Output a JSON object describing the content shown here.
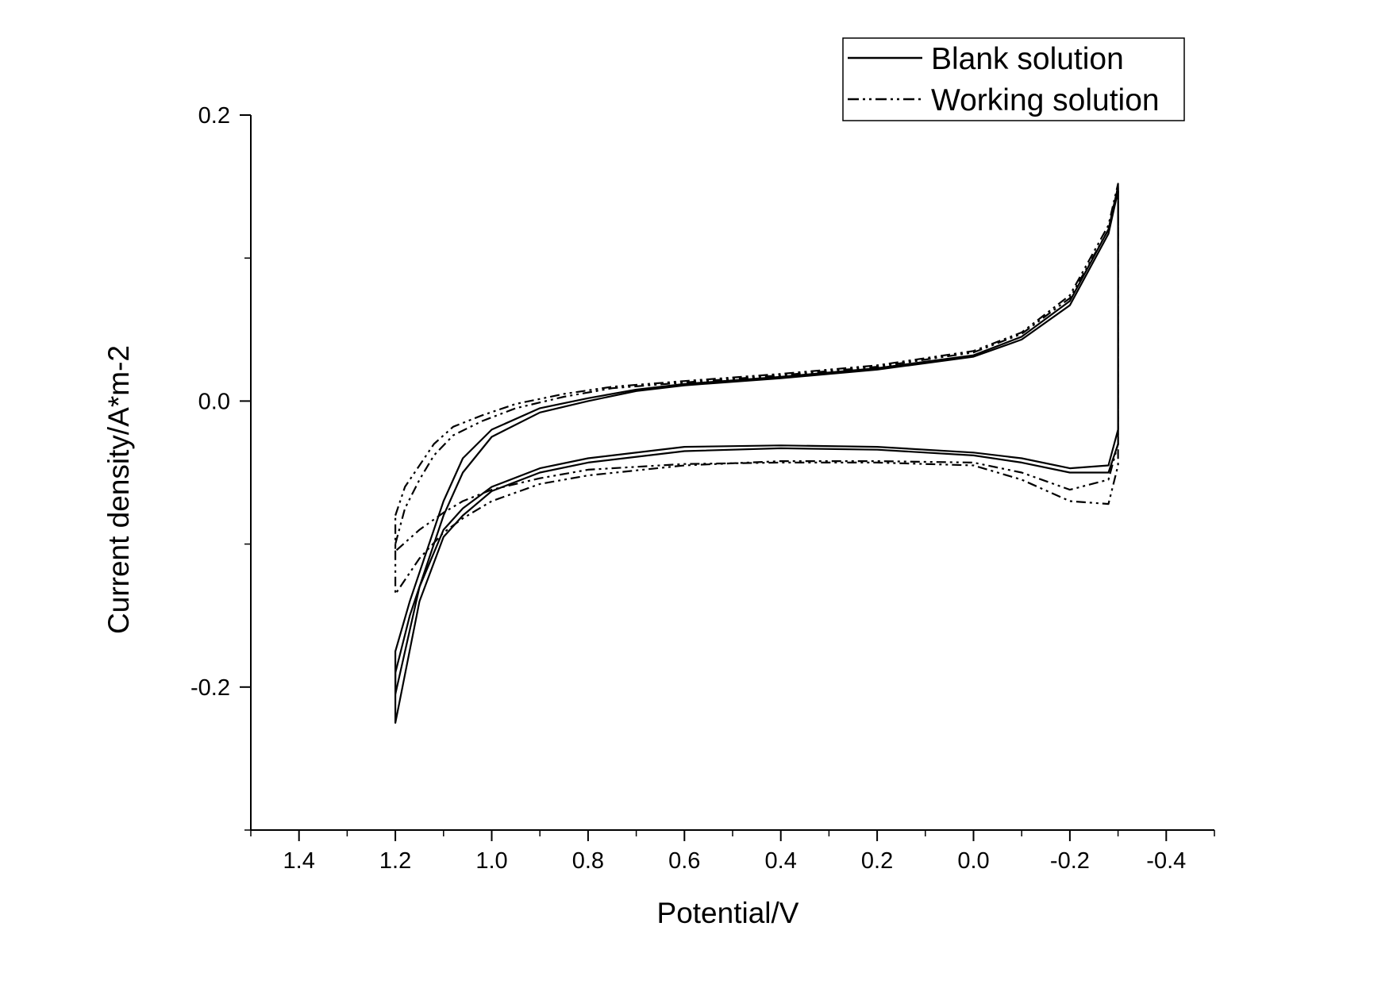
{
  "chart_data": {
    "type": "line",
    "title": "",
    "xlabel": "Potential/V",
    "ylabel": "Current density/A*m-2",
    "xlim": [
      1.5,
      -0.5
    ],
    "ylim": [
      -0.3,
      0.2
    ],
    "x_reversed": true,
    "x_ticks": [
      1.4,
      1.2,
      1.0,
      0.8,
      0.6,
      0.4,
      0.2,
      0.0,
      -0.2,
      -0.4
    ],
    "x_tick_labels": [
      "1.4",
      "1.2",
      "1.0",
      "0.8",
      "0.6",
      "0.4",
      "0.2",
      "0.0",
      "-0.2",
      "-0.4"
    ],
    "y_ticks": [
      0.2,
      0.0,
      -0.2
    ],
    "y_tick_labels": [
      "0.2",
      "0.0",
      "-0.2"
    ],
    "grid": false,
    "legend_position": "top-right",
    "series": [
      {
        "name": "Blank solution",
        "style": "solid",
        "color": "#000000",
        "cycles": [
          {
            "x": [
              1.2,
              1.17,
              1.14,
              1.1,
              1.06,
              1.0,
              0.9,
              0.8,
              0.7,
              0.6,
              0.4,
              0.2,
              0.0,
              -0.1,
              -0.2,
              -0.28,
              -0.3,
              -0.3,
              -0.28,
              -0.2,
              -0.1,
              0.0,
              0.2,
              0.4,
              0.6,
              0.8,
              0.9,
              1.0,
              1.06,
              1.1,
              1.15,
              1.2
            ],
            "y": [
              -0.175,
              -0.14,
              -0.11,
              -0.07,
              -0.04,
              -0.02,
              -0.005,
              0.002,
              0.008,
              0.012,
              0.017,
              0.023,
              0.032,
              0.045,
              0.07,
              0.12,
              0.15,
              -0.02,
              -0.045,
              -0.047,
              -0.04,
              -0.036,
              -0.032,
              -0.031,
              -0.032,
              -0.04,
              -0.047,
              -0.06,
              -0.075,
              -0.09,
              -0.13,
              -0.205
            ]
          },
          {
            "x": [
              1.2,
              1.17,
              1.14,
              1.1,
              1.06,
              1.0,
              0.9,
              0.8,
              0.7,
              0.6,
              0.4,
              0.2,
              0.0,
              -0.1,
              -0.2,
              -0.28,
              -0.3,
              -0.3,
              -0.28,
              -0.2,
              -0.1,
              0.0,
              0.2,
              0.4,
              0.6,
              0.8,
              0.9,
              1.0,
              1.06,
              1.1,
              1.15,
              1.2
            ],
            "y": [
              -0.19,
              -0.15,
              -0.12,
              -0.08,
              -0.05,
              -0.025,
              -0.008,
              0.0,
              0.007,
              0.011,
              0.016,
              0.022,
              0.031,
              0.043,
              0.067,
              0.117,
              0.147,
              -0.03,
              -0.05,
              -0.05,
              -0.043,
              -0.038,
              -0.034,
              -0.033,
              -0.035,
              -0.043,
              -0.05,
              -0.063,
              -0.08,
              -0.095,
              -0.14,
              -0.225
            ]
          }
        ]
      },
      {
        "name": "Working solution",
        "style": "dash-dot-dot",
        "color": "#000000",
        "cycles": [
          {
            "x": [
              1.2,
              1.18,
              1.15,
              1.12,
              1.08,
              1.02,
              0.95,
              0.85,
              0.75,
              0.6,
              0.4,
              0.2,
              0.0,
              -0.1,
              -0.2,
              -0.28,
              -0.3,
              -0.3,
              -0.28,
              -0.2,
              -0.1,
              0.0,
              0.2,
              0.4,
              0.6,
              0.8,
              0.9,
              1.0,
              1.06,
              1.1,
              1.15,
              1.2
            ],
            "y": [
              -0.08,
              -0.06,
              -0.045,
              -0.03,
              -0.018,
              -0.01,
              -0.002,
              0.005,
              0.01,
              0.014,
              0.019,
              0.025,
              0.035,
              0.048,
              0.074,
              0.123,
              0.152,
              -0.03,
              -0.055,
              -0.062,
              -0.05,
              -0.043,
              -0.042,
              -0.042,
              -0.045,
              -0.052,
              -0.058,
              -0.07,
              -0.082,
              -0.092,
              -0.11,
              -0.135
            ]
          },
          {
            "x": [
              1.2,
              1.18,
              1.15,
              1.12,
              1.08,
              1.02,
              0.95,
              0.85,
              0.75,
              0.6,
              0.4,
              0.2,
              0.0,
              -0.1,
              -0.2,
              -0.28,
              -0.3,
              -0.3,
              -0.28,
              -0.2,
              -0.1,
              0.0,
              0.2,
              0.4,
              0.6,
              0.8,
              0.9,
              1.0,
              1.06,
              1.1,
              1.15,
              1.2
            ],
            "y": [
              -0.1,
              -0.075,
              -0.055,
              -0.038,
              -0.024,
              -0.014,
              -0.005,
              0.003,
              0.009,
              0.013,
              0.018,
              0.024,
              0.034,
              0.047,
              0.072,
              0.12,
              0.15,
              -0.045,
              -0.072,
              -0.07,
              -0.055,
              -0.045,
              -0.043,
              -0.043,
              -0.044,
              -0.048,
              -0.054,
              -0.062,
              -0.07,
              -0.078,
              -0.09,
              -0.105
            ]
          }
        ]
      }
    ]
  }
}
